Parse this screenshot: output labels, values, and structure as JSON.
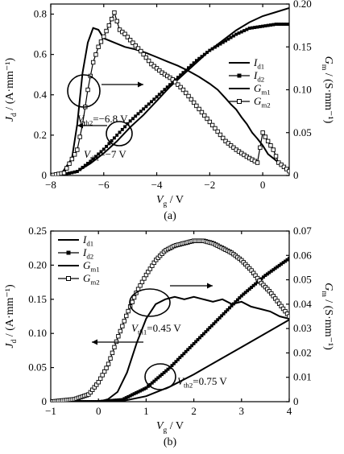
{
  "chart_data": [
    {
      "type": "line",
      "caption": "(a)",
      "xlabel": "V_g / V",
      "ylabel": "J_d / (A·mm⁻¹)",
      "y2label": "G_m / (S·mm⁻¹)",
      "xlim": [
        -8,
        1
      ],
      "ylim": [
        0,
        0.85
      ],
      "y2lim": [
        0,
        0.2
      ],
      "xticks": [
        "−8",
        "−6",
        "−4",
        "−2",
        "0"
      ],
      "yticks": [
        "0",
        "0.2",
        "0.4",
        "0.6",
        "0.8"
      ],
      "y2ticks": [
        "0",
        "0.05",
        "0.10",
        "0.15",
        "0.20"
      ],
      "legend": {
        "position": "right",
        "entries": [
          "I_d1",
          "I_d2",
          "G_m1",
          "G_m2"
        ]
      },
      "annotations": [
        "V_th2=−6.8 V",
        "V_th1=−7 V"
      ],
      "series": [
        {
          "name": "I_d1",
          "axis": "left",
          "marker": "none",
          "x": [
            -8,
            -7.5,
            -7,
            -6.5,
            -6,
            -5.5,
            -5,
            -4.5,
            -4,
            -3.5,
            -3,
            -2.5,
            -2,
            -1.5,
            -1,
            -0.5,
            0,
            0.5,
            1
          ],
          "y": [
            0,
            0.005,
            0.02,
            0.06,
            0.11,
            0.17,
            0.24,
            0.3,
            0.37,
            0.44,
            0.5,
            0.56,
            0.62,
            0.67,
            0.72,
            0.76,
            0.79,
            0.81,
            0.83
          ]
        },
        {
          "name": "I_d2",
          "axis": "left",
          "marker": "filled-square",
          "x": [
            -8,
            -7.5,
            -7,
            -6.5,
            -6,
            -5.5,
            -5,
            -4.5,
            -4,
            -3.5,
            -3,
            -2.5,
            -2,
            -1.5,
            -1,
            -0.5,
            0,
            0.5,
            1
          ],
          "y": [
            0,
            0.005,
            0.02,
            0.07,
            0.13,
            0.2,
            0.27,
            0.33,
            0.39,
            0.45,
            0.51,
            0.57,
            0.62,
            0.66,
            0.7,
            0.73,
            0.74,
            0.75,
            0.75
          ]
        },
        {
          "name": "G_m1",
          "axis": "right",
          "marker": "none",
          "x": [
            -8,
            -7.6,
            -7.2,
            -7,
            -6.8,
            -6.6,
            -6.4,
            -6.2,
            -6,
            -5.6,
            -5.2,
            -4.8,
            -4.4,
            -4,
            -3.6,
            -3.2,
            -2.8,
            -2.4,
            -2,
            -1.7,
            -1.4,
            -1.2,
            -1,
            -0.8,
            -0.6,
            -0.4,
            -0.2,
            0,
            0.2,
            0.4,
            0.6,
            0.8,
            1
          ],
          "y": [
            0,
            0.002,
            0.02,
            0.06,
            0.12,
            0.155,
            0.172,
            0.17,
            0.16,
            0.155,
            0.15,
            0.147,
            0.143,
            0.138,
            0.133,
            0.128,
            0.122,
            0.115,
            0.107,
            0.1,
            0.09,
            0.083,
            0.077,
            0.068,
            0.06,
            0.05,
            0.043,
            0.035,
            0.025,
            0.02,
            0.015,
            0.01,
            0.005
          ]
        },
        {
          "name": "G_m2",
          "axis": "right",
          "marker": "open-square",
          "x": [
            -8,
            -7.5,
            -7,
            -6.8,
            -6.6,
            -6.4,
            -6.2,
            -6,
            -5.8,
            -5.6,
            -5.4,
            -5.2,
            -5,
            -4.6,
            -4.2,
            -3.8,
            -3.4,
            -3,
            -2.6,
            -2.2,
            -1.8,
            -1.4,
            -1,
            -0.6,
            -0.2,
            0,
            0.2,
            0.4,
            0.6,
            0.8,
            1
          ],
          "y": [
            0,
            0.003,
            0.03,
            0.06,
            0.1,
            0.132,
            0.15,
            0.162,
            0.175,
            0.19,
            0.17,
            0.165,
            0.158,
            0.145,
            0.13,
            0.12,
            0.112,
            0.1,
            0.085,
            0.07,
            0.055,
            0.04,
            0.03,
            0.022,
            0.015,
            0.05,
            0.04,
            0.03,
            0.015,
            0.01,
            0.005
          ]
        }
      ]
    },
    {
      "type": "line",
      "caption": "(b)",
      "xlabel": "V_g / V",
      "ylabel": "J_d / (A·mm⁻¹)",
      "y2label": "G_m / (S·mm⁻¹)",
      "xlim": [
        -1,
        4
      ],
      "ylim": [
        0,
        0.25
      ],
      "y2lim": [
        0,
        0.07
      ],
      "xticks": [
        "−1",
        "0",
        "1",
        "2",
        "3",
        "4"
      ],
      "yticks": [
        "0",
        "0.05",
        "0.10",
        "0.15",
        "0.20",
        "0.25"
      ],
      "y2ticks": [
        "0",
        "0.01",
        "0.02",
        "0.03",
        "0.04",
        "0.05",
        "0.06",
        "0.07"
      ],
      "legend": {
        "position": "top-left",
        "entries": [
          "I_d1",
          "I_d2",
          "G_m1",
          "G_m2"
        ]
      },
      "annotations": [
        "V_th1=0.45 V",
        "V_th2=0.75 V"
      ],
      "series": [
        {
          "name": "I_d1",
          "axis": "left",
          "marker": "none",
          "x": [
            -1,
            0,
            0.5,
            1,
            1.5,
            2,
            2.5,
            3,
            3.5,
            4
          ],
          "y": [
            0,
            0,
            0.001,
            0.008,
            0.022,
            0.04,
            0.06,
            0.08,
            0.1,
            0.12
          ]
        },
        {
          "name": "I_d2",
          "axis": "left",
          "marker": "filled-square",
          "x": [
            -1,
            0,
            0.5,
            1,
            1.5,
            2,
            2.5,
            3,
            3.5,
            4
          ],
          "y": [
            0,
            0,
            0.003,
            0.02,
            0.05,
            0.085,
            0.12,
            0.155,
            0.185,
            0.21
          ]
        },
        {
          "name": "G_m1",
          "axis": "right",
          "marker": "none",
          "x": [
            -1,
            0,
            0.2,
            0.4,
            0.6,
            0.8,
            1,
            1.2,
            1.4,
            1.6,
            1.8,
            2,
            2.2,
            2.4,
            2.6,
            2.8,
            3,
            3.2,
            3.4,
            3.6,
            3.8,
            4
          ],
          "y": [
            0,
            0,
            0.001,
            0.004,
            0.012,
            0.024,
            0.034,
            0.04,
            0.042,
            0.043,
            0.042,
            0.043,
            0.042,
            0.041,
            0.042,
            0.04,
            0.041,
            0.039,
            0.038,
            0.037,
            0.035,
            0.034
          ]
        },
        {
          "name": "G_m2",
          "axis": "right",
          "marker": "open-square",
          "x": [
            -1,
            -0.5,
            -0.2,
            0,
            0.2,
            0.4,
            0.6,
            0.8,
            1,
            1.2,
            1.4,
            1.6,
            1.8,
            2,
            2.2,
            2.4,
            2.6,
            2.8,
            3,
            3.2,
            3.4,
            3.6,
            3.8,
            4
          ],
          "y": [
            0,
            0.001,
            0.003,
            0.008,
            0.015,
            0.026,
            0.036,
            0.045,
            0.052,
            0.058,
            0.062,
            0.064,
            0.065,
            0.066,
            0.066,
            0.065,
            0.063,
            0.061,
            0.058,
            0.054,
            0.049,
            0.045,
            0.04,
            0.035
          ]
        }
      ]
    }
  ]
}
